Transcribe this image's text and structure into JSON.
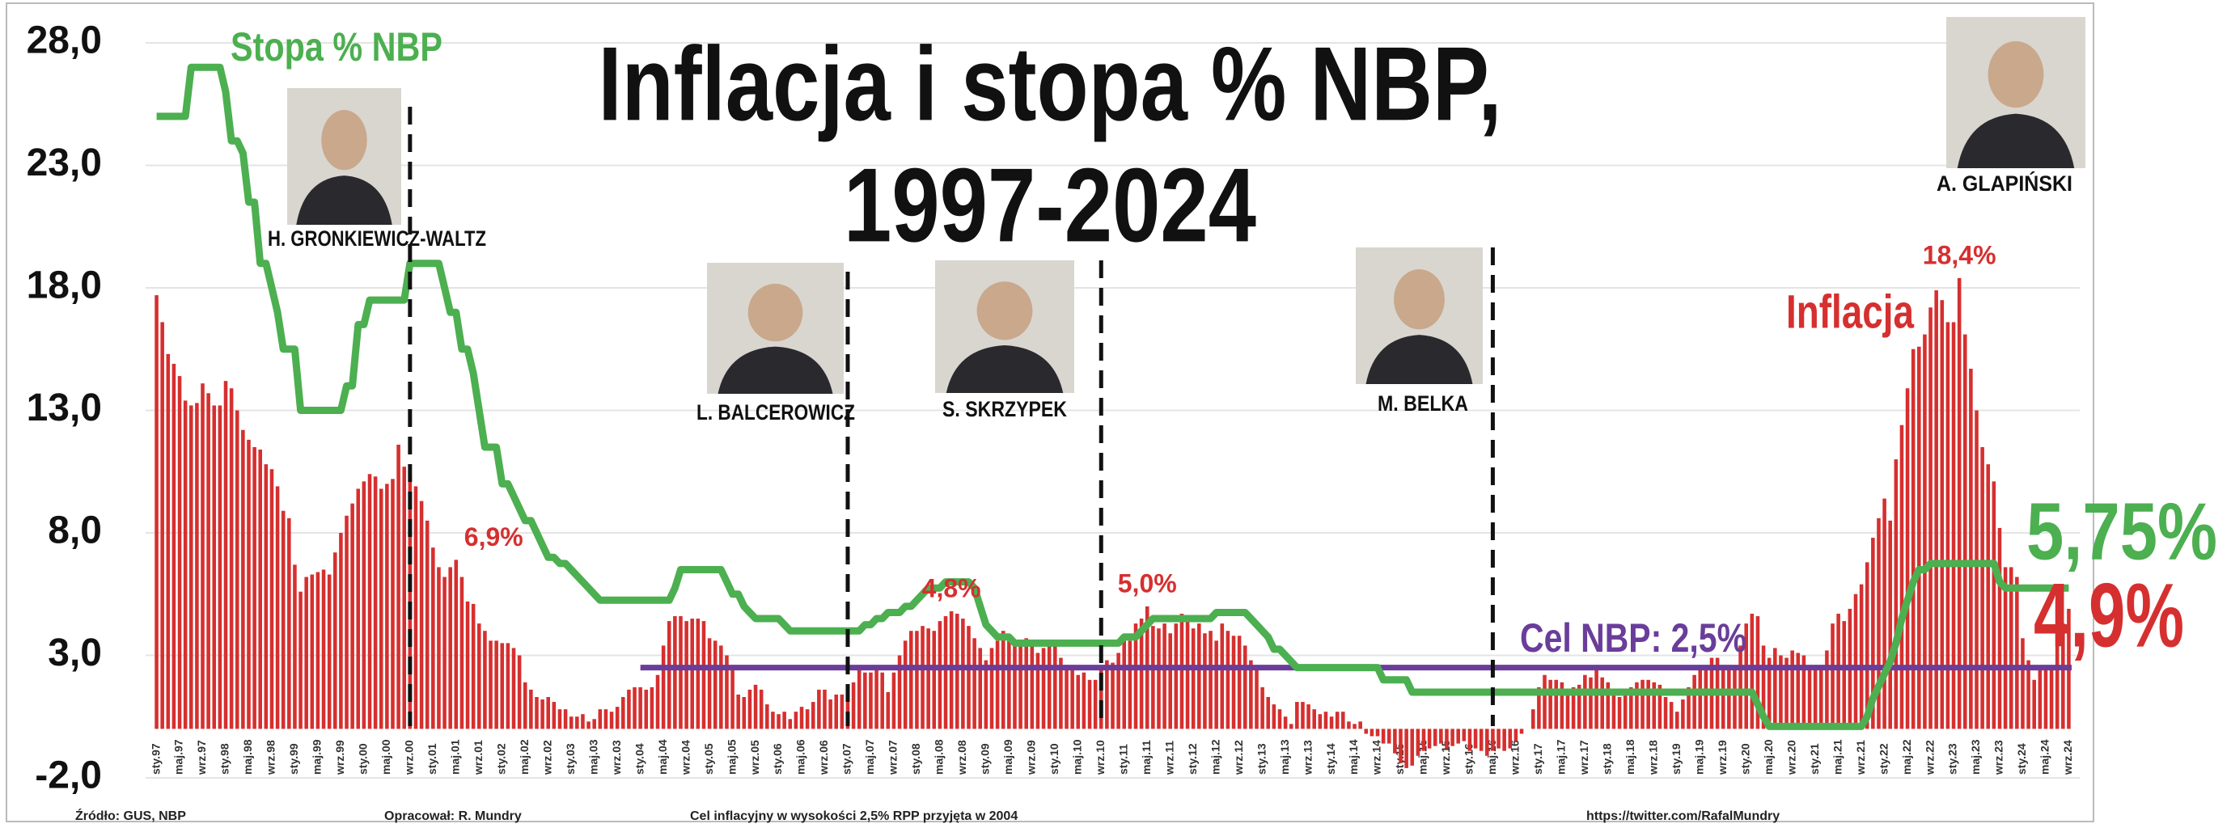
{
  "chart_data": {
    "type": "bar",
    "title_lines": [
      "Inflacja i stopa % NBP,",
      "1997-2024"
    ],
    "categories": [
      "sty.97",
      null,
      null,
      null,
      "maj.97",
      null,
      null,
      null,
      "wrz.97",
      null,
      null,
      null,
      "sty.98",
      null,
      null,
      null,
      "maj.98",
      null,
      null,
      null,
      "wrz.98",
      null,
      null,
      null,
      "sty.99",
      null,
      null,
      null,
      "maj.99",
      null,
      null,
      null,
      "wrz.99",
      null,
      null,
      null,
      "sty.00",
      null,
      null,
      null,
      "maj.00",
      null,
      null,
      null,
      "wrz.00",
      null,
      null,
      null,
      "sty.01",
      null,
      null,
      null,
      "maj.01",
      null,
      null,
      null,
      "wrz.01",
      null,
      null,
      null,
      "sty.02",
      null,
      null,
      null,
      "maj.02",
      null,
      null,
      null,
      "wrz.02",
      null,
      null,
      null,
      "sty.03",
      null,
      null,
      null,
      "maj.03",
      null,
      null,
      null,
      "wrz.03",
      null,
      null,
      null,
      "sty.04",
      null,
      null,
      null,
      "maj.04",
      null,
      null,
      null,
      "wrz.04",
      null,
      null,
      null,
      "sty.05",
      null,
      null,
      null,
      "maj.05",
      null,
      null,
      null,
      "wrz.05",
      null,
      null,
      null,
      "sty.06",
      null,
      null,
      null,
      "maj.06",
      null,
      null,
      null,
      "wrz.06",
      null,
      null,
      null,
      "sty.07",
      null,
      null,
      null,
      "maj.07",
      null,
      null,
      null,
      "wrz.07",
      null,
      null,
      null,
      "sty.08",
      null,
      null,
      null,
      "maj.08",
      null,
      null,
      null,
      "wrz.08",
      null,
      null,
      null,
      "sty.09",
      null,
      null,
      null,
      "maj.09",
      null,
      null,
      null,
      "wrz.09",
      null,
      null,
      null,
      "sty.10",
      null,
      null,
      null,
      "maj.10",
      null,
      null,
      null,
      "wrz.10",
      null,
      null,
      null,
      "sty.11",
      null,
      null,
      null,
      "maj.11",
      null,
      null,
      null,
      "wrz.11",
      null,
      null,
      null,
      "sty.12",
      null,
      null,
      null,
      "maj.12",
      null,
      null,
      null,
      "wrz.12",
      null,
      null,
      null,
      "sty.13",
      null,
      null,
      null,
      "maj.13",
      null,
      null,
      null,
      "wrz.13",
      null,
      null,
      null,
      "sty.14",
      null,
      null,
      null,
      "maj.14",
      null,
      null,
      null,
      "wrz.14",
      null,
      null,
      null,
      "sty.15",
      null,
      null,
      null,
      "maj.15",
      null,
      null,
      null,
      "wrz.15",
      null,
      null,
      null,
      "sty.16",
      null,
      null,
      null,
      "maj.16",
      null,
      null,
      null,
      "wrz.16",
      null,
      null,
      null,
      "sty.17",
      null,
      null,
      null,
      "maj.17",
      null,
      null,
      null,
      "wrz.17",
      null,
      null,
      null,
      "sty.18",
      null,
      null,
      null,
      "maj.18",
      null,
      null,
      null,
      "wrz.18",
      null,
      null,
      null,
      "sty.19",
      null,
      null,
      null,
      "maj.19",
      null,
      null,
      null,
      "wrz.19",
      null,
      null,
      null,
      "sty.20",
      null,
      null,
      null,
      "maj.20",
      null,
      null,
      null,
      "wrz.20",
      null,
      null,
      null,
      "sty.21",
      null,
      null,
      null,
      "maj.21",
      null,
      null,
      null,
      "wrz.21",
      null,
      null,
      null,
      "sty.22",
      null,
      null,
      null,
      "maj.22",
      null,
      null,
      null,
      "wrz.22",
      null,
      null,
      null,
      "sty.23",
      null,
      null,
      null,
      "maj.23",
      null,
      null,
      null,
      "wrz.23",
      null,
      null,
      null,
      "sty.24",
      null,
      null,
      null,
      "maj.24",
      null,
      null,
      null,
      "wrz.24"
    ],
    "series": [
      {
        "name": "Inflacja",
        "type": "bar",
        "color": "#d62f2f",
        "end_label": "4,9%",
        "values": [
          17.7,
          16.6,
          15.3,
          14.9,
          14.4,
          13.4,
          13.2,
          13.3,
          14.1,
          13.7,
          13.2,
          13.2,
          14.2,
          13.9,
          13.0,
          12.2,
          11.8,
          11.5,
          11.4,
          10.8,
          10.6,
          9.9,
          8.9,
          8.6,
          6.7,
          5.6,
          6.2,
          6.3,
          6.4,
          6.5,
          6.3,
          7.2,
          8.0,
          8.7,
          9.2,
          9.8,
          10.1,
          10.4,
          10.3,
          9.8,
          10.0,
          10.2,
          11.6,
          10.7,
          10.3,
          9.9,
          9.3,
          8.5,
          7.4,
          6.6,
          6.2,
          6.6,
          6.9,
          6.2,
          5.2,
          5.1,
          4.3,
          4.0,
          3.6,
          3.6,
          3.5,
          3.5,
          3.3,
          3.0,
          1.9,
          1.6,
          1.3,
          1.2,
          1.3,
          1.1,
          0.8,
          0.8,
          0.5,
          0.5,
          0.6,
          0.3,
          0.4,
          0.8,
          0.8,
          0.7,
          0.9,
          1.3,
          1.6,
          1.7,
          1.7,
          1.6,
          1.7,
          2.2,
          3.4,
          4.4,
          4.6,
          4.6,
          4.4,
          4.5,
          4.5,
          4.4,
          3.7,
          3.6,
          3.4,
          3.0,
          2.5,
          1.4,
          1.3,
          1.6,
          1.8,
          1.6,
          1.0,
          0.7,
          0.6,
          0.7,
          0.4,
          0.7,
          0.9,
          0.8,
          1.1,
          1.6,
          1.6,
          1.2,
          1.4,
          1.4,
          1.6,
          1.9,
          2.5,
          2.3,
          2.3,
          2.6,
          2.3,
          1.5,
          2.3,
          3.0,
          3.6,
          4.0,
          4.0,
          4.2,
          4.1,
          4.0,
          4.4,
          4.6,
          4.8,
          4.7,
          4.5,
          4.2,
          3.7,
          3.3,
          2.8,
          3.3,
          3.6,
          4.0,
          3.6,
          3.5,
          3.6,
          3.7,
          3.4,
          3.1,
          3.3,
          3.5,
          3.5,
          2.9,
          2.6,
          2.4,
          2.2,
          2.3,
          2.0,
          2.0,
          2.5,
          2.8,
          2.7,
          3.1,
          3.6,
          3.6,
          4.3,
          4.5,
          5.0,
          4.2,
          4.1,
          4.3,
          3.9,
          4.3,
          4.7,
          4.6,
          4.1,
          4.3,
          3.9,
          4.0,
          3.6,
          4.3,
          4.0,
          3.8,
          3.8,
          3.4,
          2.8,
          2.4,
          1.7,
          1.3,
          1.0,
          0.8,
          0.5,
          0.2,
          1.1,
          1.1,
          1.0,
          0.8,
          0.6,
          0.7,
          0.5,
          0.7,
          0.7,
          0.3,
          0.2,
          0.3,
          -0.2,
          -0.3,
          -0.3,
          -0.6,
          -0.6,
          -1.0,
          -1.4,
          -1.6,
          -1.5,
          -1.1,
          -0.9,
          -0.8,
          -0.7,
          -0.6,
          -0.8,
          -0.7,
          -0.6,
          -0.5,
          -0.9,
          -0.8,
          -0.9,
          -1.1,
          -0.9,
          -0.8,
          -0.9,
          -0.8,
          -0.5,
          -0.2,
          0.0,
          0.8,
          1.7,
          2.2,
          2.0,
          2.0,
          1.9,
          1.5,
          1.7,
          1.8,
          2.2,
          2.1,
          2.5,
          2.1,
          1.9,
          1.4,
          1.3,
          1.6,
          1.7,
          1.9,
          2.0,
          2.0,
          1.9,
          1.8,
          1.3,
          1.1,
          0.7,
          1.2,
          1.7,
          2.2,
          2.4,
          2.6,
          2.9,
          2.9,
          2.6,
          2.5,
          2.6,
          3.4,
          4.3,
          4.7,
          4.6,
          3.4,
          2.9,
          3.3,
          3.0,
          2.9,
          3.2,
          3.1,
          3.0,
          2.4,
          2.6,
          2.4,
          3.2,
          4.3,
          4.7,
          4.4,
          4.9,
          5.5,
          5.9,
          6.8,
          7.8,
          8.6,
          9.4,
          8.5,
          11.0,
          12.4,
          13.9,
          15.5,
          15.6,
          16.1,
          17.2,
          17.9,
          17.5,
          16.6,
          16.6,
          18.4,
          16.1,
          14.7,
          13.0,
          11.5,
          10.8,
          10.1,
          8.2,
          6.6,
          6.6,
          6.2,
          3.7,
          2.8,
          2.0,
          2.4,
          2.5,
          2.6,
          4.2,
          4.3,
          4.9
        ]
      },
      {
        "name": "Stopa % NBP",
        "type": "line",
        "color": "#4caf50",
        "end_label": "5,75%",
        "values": [
          25,
          25,
          25,
          25,
          25,
          25,
          27,
          27,
          27,
          27,
          27,
          27,
          26,
          24,
          24,
          23.5,
          21.5,
          21.5,
          19,
          19,
          18,
          17,
          15.5,
          15.5,
          15.5,
          13,
          13,
          13,
          13,
          13,
          13,
          13,
          13,
          14,
          14,
          16.5,
          16.5,
          17.5,
          17.5,
          17.5,
          17.5,
          17.5,
          17.5,
          17.5,
          19,
          19,
          19,
          19,
          19,
          19,
          18,
          17,
          17,
          15.5,
          15.5,
          14.5,
          13,
          11.5,
          11.5,
          11.5,
          10,
          10,
          9.5,
          9,
          8.5,
          8.5,
          8,
          7.5,
          7,
          7,
          6.75,
          6.75,
          6.5,
          6.25,
          6,
          5.75,
          5.5,
          5.25,
          5.25,
          5.25,
          5.25,
          5.25,
          5.25,
          5.25,
          5.25,
          5.25,
          5.25,
          5.25,
          5.25,
          5.25,
          5.75,
          6.5,
          6.5,
          6.5,
          6.5,
          6.5,
          6.5,
          6.5,
          6.5,
          6,
          5.5,
          5.5,
          5,
          4.75,
          4.5,
          4.5,
          4.5,
          4.5,
          4.5,
          4.25,
          4,
          4,
          4,
          4,
          4,
          4,
          4,
          4,
          4,
          4,
          4,
          4,
          4,
          4.25,
          4.25,
          4.5,
          4.5,
          4.75,
          4.75,
          4.75,
          5,
          5,
          5.25,
          5.5,
          5.75,
          5.75,
          5.75,
          6,
          6,
          6,
          6,
          6,
          5.75,
          5,
          4.25,
          4,
          3.75,
          3.75,
          3.75,
          3.5,
          3.5,
          3.5,
          3.5,
          3.5,
          3.5,
          3.5,
          3.5,
          3.5,
          3.5,
          3.5,
          3.5,
          3.5,
          3.5,
          3.5,
          3.5,
          3.5,
          3.5,
          3.5,
          3.75,
          3.75,
          3.75,
          4,
          4.25,
          4.5,
          4.5,
          4.5,
          4.5,
          4.5,
          4.5,
          4.5,
          4.5,
          4.5,
          4.5,
          4.5,
          4.75,
          4.75,
          4.75,
          4.75,
          4.75,
          4.75,
          4.5,
          4.25,
          4,
          3.75,
          3.25,
          3.25,
          3,
          2.75,
          2.5,
          2.5,
          2.5,
          2.5,
          2.5,
          2.5,
          2.5,
          2.5,
          2.5,
          2.5,
          2.5,
          2.5,
          2.5,
          2.5,
          2.5,
          2,
          2,
          2,
          2,
          2,
          1.5,
          1.5,
          1.5,
          1.5,
          1.5,
          1.5,
          1.5,
          1.5,
          1.5,
          1.5,
          1.5,
          1.5,
          1.5,
          1.5,
          1.5,
          1.5,
          1.5,
          1.5,
          1.5,
          1.5,
          1.5,
          1.5,
          1.5,
          1.5,
          1.5,
          1.5,
          1.5,
          1.5,
          1.5,
          1.5,
          1.5,
          1.5,
          1.5,
          1.5,
          1.5,
          1.5,
          1.5,
          1.5,
          1.5,
          1.5,
          1.5,
          1.5,
          1.5,
          1.5,
          1.5,
          1.5,
          1.5,
          1.5,
          1.5,
          1.5,
          1.5,
          1.5,
          1.5,
          1.5,
          1.5,
          1.5,
          1.5,
          1.5,
          1.5,
          1.5,
          1,
          0.5,
          0.1,
          0.1,
          0.1,
          0.1,
          0.1,
          0.1,
          0.1,
          0.1,
          0.1,
          0.1,
          0.1,
          0.1,
          0.1,
          0.1,
          0.1,
          0.1,
          0.1,
          0.5,
          1.25,
          1.75,
          2.25,
          2.75,
          3.5,
          4.5,
          5.25,
          6,
          6.5,
          6.5,
          6.75,
          6.75,
          6.75,
          6.75,
          6.75,
          6.75,
          6.75,
          6.75,
          6.75,
          6.75,
          6.75,
          6.75,
          6,
          5.75,
          5.75,
          5.75,
          5.75,
          5.75,
          5.75,
          5.75,
          5.75,
          5.75,
          5.75,
          5.75,
          5.75
        ]
      }
    ],
    "target": {
      "label": "Cel NBP: 2,5%",
      "value": 2.5,
      "from": "sty.04",
      "color": "#6a3d9a"
    },
    "annotations": [
      {
        "text": "6,9%",
        "value": 6.9
      },
      {
        "text": "4,8%",
        "value": 4.8
      },
      {
        "text": "5,0%",
        "value": 5.0
      },
      {
        "text": "18,4%",
        "value": 18.4
      }
    ],
    "governors": [
      {
        "name": "H. GRONKIEWICZ-WALTZ",
        "term_end": "wrz.00"
      },
      {
        "name": "L. BALCEROWICZ",
        "term_end": "sty.07"
      },
      {
        "name": "S. SKRZYPEK",
        "term_end": "wrz.10"
      },
      {
        "name": "M. BELKA",
        "term_end": "maj.16"
      },
      {
        "name": "A. GLAPIŃSKI"
      }
    ],
    "ylim": [
      -2,
      28
    ],
    "yticks": [
      {
        "value": -2,
        "label": "-2,0"
      },
      {
        "value": 3,
        "label": "3,0"
      },
      {
        "value": 8,
        "label": "8,0"
      },
      {
        "value": 13,
        "label": "13,0"
      },
      {
        "value": 18,
        "label": "18,0"
      },
      {
        "value": 23,
        "label": "23,0"
      },
      {
        "value": 28,
        "label": "28,0"
      }
    ],
    "grid": true,
    "footer": [
      "Źródło: GUS, NBP",
      "Opracował: R. Mundry",
      "Cel inflacyjny w wysokości 2,5% RPP przyjęta w 2004",
      "https://twitter.com/RafalMundry"
    ]
  }
}
